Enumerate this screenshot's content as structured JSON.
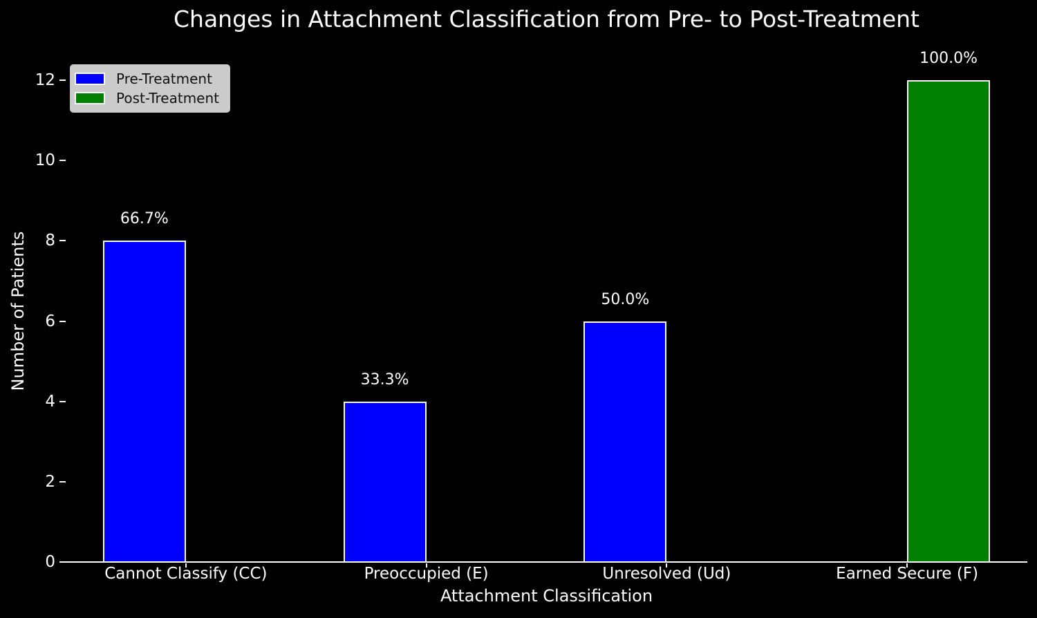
{
  "title": "Changes in Attachment Classification from Pre- to Post-Treatment",
  "colors": {
    "background": "#000000",
    "text": "#ffffff",
    "pre_treatment": "#0000ff",
    "post_treatment": "#008000",
    "legend_background": "#cbcbcb",
    "legend_text": "#111111",
    "bar_edge": "#ffffff"
  },
  "chart_data": {
    "type": "bar",
    "title": "Changes in Attachment Classification from Pre- to Post-Treatment",
    "xlabel": "Attachment Classification",
    "ylabel": "Number of Patients",
    "categories": [
      "Cannot Classify (CC)",
      "Preoccupied (E)",
      "Unresolved (Ud)",
      "Earned Secure (F)"
    ],
    "series": [
      {
        "name": "Pre-Treatment",
        "color": "#0000ff",
        "values": [
          8,
          4,
          6,
          0
        ],
        "value_labels": [
          "66.7%",
          "33.3%",
          "50.0%",
          ""
        ]
      },
      {
        "name": "Post-Treatment",
        "color": "#008000",
        "values": [
          0,
          0,
          0,
          12
        ],
        "value_labels": [
          "",
          "",
          "",
          "100.0%"
        ]
      }
    ],
    "ylim": [
      0,
      12
    ],
    "yticks": [
      "0",
      "2",
      "4",
      "6",
      "8",
      "10",
      "12"
    ],
    "grid": false,
    "legend_position": "upper left",
    "background": "#000000"
  },
  "legend": {
    "items": [
      {
        "label": "Pre-Treatment",
        "color": "#0000ff"
      },
      {
        "label": "Post-Treatment",
        "color": "#008000"
      }
    ]
  }
}
